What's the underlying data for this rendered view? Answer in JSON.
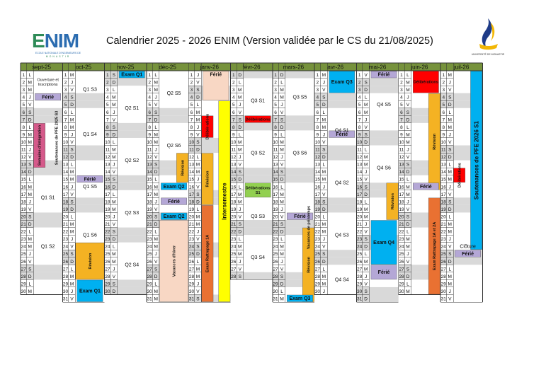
{
  "title": "Calendrier 2025 - 2026 ENIM (Version validée par le CS du 21/08/2025)",
  "logo_left": {
    "brand": "ENIM",
    "subtitle": "ECOLE NATIONALE D'INGENIEURS DE",
    "city": "MONASTIR"
  },
  "logo_right": {
    "caption": "UNIVERSITÉ DE MONASTIR"
  },
  "colors": {
    "header": "#76923c",
    "weekend": "#d9d9d9",
    "exam": "#00b0f0",
    "ferie": "#b4a7d6",
    "revision": "#f4b223",
    "deliberation": "#ff0000",
    "rattrapage": "#e97132",
    "holiday": "#f8d7c4",
    "intersemestre": "#ffff00",
    "pfe": "#00b0f0",
    "integration": "#d5598a",
    "green": "#92d050",
    "grid": "#333333"
  },
  "months": [
    {
      "name": "sept-25",
      "start_dow": 1,
      "days": 30
    },
    {
      "name": "oct-25",
      "start_dow": 3,
      "days": 31
    },
    {
      "name": "nov-25",
      "start_dow": 6,
      "days": 30
    },
    {
      "name": "déc-25",
      "start_dow": 1,
      "days": 31
    },
    {
      "name": "janv-26",
      "start_dow": 4,
      "days": 31
    },
    {
      "name": "févr-26",
      "start_dow": 0,
      "days": 28
    },
    {
      "name": "mars-26",
      "start_dow": 0,
      "days": 31
    },
    {
      "name": "avr-26",
      "start_dow": 3,
      "days": 30
    },
    {
      "name": "mai-26",
      "start_dow": 5,
      "days": 31
    },
    {
      "name": "juin-26",
      "start_dow": 1,
      "days": 30
    },
    {
      "name": "juil-26",
      "start_dow": 3,
      "days": 31
    }
  ],
  "day_letters": [
    "D",
    "L",
    "M",
    "M",
    "J",
    "V",
    "S"
  ],
  "events": [
    {
      "m": 0,
      "from": 1,
      "to": 3,
      "label": "Ouverture et Inscriptions",
      "kind": "none"
    },
    {
      "m": 0,
      "from": 4,
      "to": 4,
      "label": "Férié",
      "kind": "ferie"
    },
    {
      "m": 0,
      "from": 8,
      "to": 13,
      "label": "Semaine d'intégration",
      "kind": "integration",
      "vertical": true,
      "part": "left"
    },
    {
      "m": 0,
      "from": 6,
      "to": 13,
      "label": "Soutenances de PFE 2025 S3",
      "kind": "none",
      "vertical": true,
      "part": "right"
    },
    {
      "m": 0,
      "from": 15,
      "to": 20,
      "label": "Q1 S1",
      "kind": "none"
    },
    {
      "m": 0,
      "from": 21,
      "to": 27,
      "label": "Q1 S2",
      "kind": "none"
    },
    {
      "m": 1,
      "from": 1,
      "to": 5,
      "label": "Q1 S3",
      "kind": "none"
    },
    {
      "m": 1,
      "from": 6,
      "to": 12,
      "label": "Q1 S4",
      "kind": "none"
    },
    {
      "m": 1,
      "from": 15,
      "to": 15,
      "label": "Férié",
      "kind": "ferie"
    },
    {
      "m": 1,
      "from": 13,
      "to": 19,
      "label": "Q1 S5",
      "kind": "none"
    },
    {
      "m": 1,
      "from": 20,
      "to": 25,
      "label": "Q1 S6",
      "kind": "none"
    },
    {
      "m": 1,
      "from": 24,
      "to": 28,
      "label": "Révision",
      "kind": "revision",
      "vertical": true
    },
    {
      "m": 1,
      "from": 29,
      "to": 31,
      "label": "Exam Q1",
      "kind": "exam"
    },
    {
      "m": 2,
      "from": 1,
      "to": 1,
      "label": "Exam Q1",
      "kind": "exam"
    },
    {
      "m": 2,
      "from": 3,
      "to": 8,
      "label": "Q2 S1",
      "kind": "none"
    },
    {
      "m": 2,
      "from": 10,
      "to": 15,
      "label": "Q2 S2",
      "kind": "none"
    },
    {
      "m": 2,
      "from": 17,
      "to": 22,
      "label": "Q2 S3",
      "kind": "none"
    },
    {
      "m": 2,
      "from": 24,
      "to": 29,
      "label": "Q2 S4",
      "kind": "none"
    },
    {
      "m": 3,
      "from": 1,
      "to": 6,
      "label": "Q2 S5",
      "kind": "none"
    },
    {
      "m": 3,
      "from": 8,
      "to": 13,
      "label": "Q2 S6",
      "kind": "none"
    },
    {
      "m": 3,
      "from": 12,
      "to": 15,
      "label": "Révision",
      "kind": "revision",
      "vertical": true,
      "part": "right"
    },
    {
      "m": 3,
      "from": 16,
      "to": 16,
      "label": "Exam Q2",
      "kind": "exam"
    },
    {
      "m": 3,
      "from": 18,
      "to": 18,
      "label": "Férié",
      "kind": "ferie"
    },
    {
      "m": 3,
      "from": 20,
      "to": 20,
      "label": "Exam Q2",
      "kind": "exam"
    },
    {
      "m": 3,
      "from": 21,
      "to": 31,
      "label": "Vacances d'hiver",
      "kind": "holiday",
      "vertical": true
    },
    {
      "m": 4,
      "from": 1,
      "to": 1,
      "label": "Férié",
      "kind": "ferie"
    },
    {
      "m": 4,
      "from": 1,
      "to": 4,
      "label": "",
      "kind": "holiday"
    },
    {
      "m": 4,
      "from": 7,
      "to": 9,
      "label": "Délibér-ations",
      "kind": "deliberation",
      "vertical": true,
      "part": "left"
    },
    {
      "m": 4,
      "from": 12,
      "to": 18,
      "label": "Révision",
      "kind": "revision",
      "vertical": true,
      "part": "left"
    },
    {
      "m": 4,
      "from": 19,
      "to": 31,
      "label": "Exam Rattrapage 1A",
      "kind": "rattrapage",
      "vertical": true,
      "part": "left"
    },
    {
      "m": 4,
      "from": 5,
      "to": 31,
      "label": "Intersemestre",
      "kind": "intersemestre",
      "vertical": true,
      "part": "right"
    },
    {
      "m": 5,
      "from": 2,
      "to": 7,
      "label": "Q3 S1",
      "kind": "none"
    },
    {
      "m": 5,
      "from": 9,
      "to": 14,
      "label": "Q3 S2",
      "kind": "none"
    },
    {
      "m": 5,
      "from": 16,
      "to": 17,
      "label": "Délibérations S1",
      "kind": "green"
    },
    {
      "m": 5,
      "from": 19,
      "to": 21,
      "label": "Q3 S3",
      "kind": "none"
    },
    {
      "m": 5,
      "from": 23,
      "to": 28,
      "label": "Q3 S4",
      "kind": "none"
    },
    {
      "m": 5,
      "from": 7,
      "to": 7,
      "label": "Délibérations",
      "kind": "deliberation"
    },
    {
      "m": 6,
      "from": 2,
      "to": 6,
      "label": "Q3 S5",
      "kind": "none"
    },
    {
      "m": 6,
      "from": 9,
      "to": 14,
      "label": "Q3 S6",
      "kind": "none"
    },
    {
      "m": 6,
      "from": 14,
      "to": 29,
      "label": "Vacances de printemps",
      "kind": "none",
      "vertical": true,
      "part": "right"
    },
    {
      "m": 6,
      "from": 20,
      "to": 20,
      "label": "Férié",
      "kind": "ferie"
    },
    {
      "m": 6,
      "from": 22,
      "to": 31,
      "label": "Révision",
      "kind": "revision",
      "vertical": true,
      "part": "right"
    },
    {
      "m": 6,
      "from": 31,
      "to": 31,
      "label": "Exam Q3",
      "kind": "exam"
    },
    {
      "m": 7,
      "from": 1,
      "to": 3,
      "label": "Exam Q3",
      "kind": "exam"
    },
    {
      "m": 7,
      "from": 9,
      "to": 9,
      "label": "Férié",
      "kind": "ferie"
    },
    {
      "m": 7,
      "from": 6,
      "to": 11,
      "label": "Q4 S1",
      "kind": "none"
    },
    {
      "m": 7,
      "from": 13,
      "to": 18,
      "label": "Q4 S2",
      "kind": "none"
    },
    {
      "m": 7,
      "from": 20,
      "to": 25,
      "label": "Q4 S3",
      "kind": "none"
    },
    {
      "m": 7,
      "from": 27,
      "to": 30,
      "label": "Q4 S4",
      "kind": "none"
    },
    {
      "m": 8,
      "from": 1,
      "to": 1,
      "label": "Férié",
      "kind": "ferie"
    },
    {
      "m": 8,
      "from": 1,
      "to": 9,
      "label": "Q4 S5",
      "kind": "none"
    },
    {
      "m": 8,
      "from": 11,
      "to": 16,
      "label": "Q4 S6",
      "kind": "none"
    },
    {
      "m": 8,
      "from": 16,
      "to": 20,
      "label": "Révision",
      "kind": "revision",
      "vertical": true,
      "part": "right"
    },
    {
      "m": 8,
      "from": 21,
      "to": 26,
      "label": "Exam Q4",
      "kind": "exam"
    },
    {
      "m": 8,
      "from": 27,
      "to": 28,
      "label": "Férié",
      "kind": "ferie"
    },
    {
      "m": 9,
      "from": 1,
      "to": 3,
      "label": "Délibérations",
      "kind": "deliberation"
    },
    {
      "m": 9,
      "from": 4,
      "to": 16,
      "label": "Révision",
      "kind": "revision",
      "vertical": true,
      "part": "right"
    },
    {
      "m": 9,
      "from": 16,
      "to": 16,
      "label": "Férié",
      "kind": "ferie"
    },
    {
      "m": 9,
      "from": 18,
      "to": 30,
      "label": "Exam Rattrapage 1A et 2A",
      "kind": "rattrapage",
      "vertical": true,
      "part": "right"
    },
    {
      "m": 10,
      "from": 14,
      "to": 15,
      "label": "Délibérations",
      "kind": "deliberation",
      "vertical": true,
      "part": "left"
    },
    {
      "m": 10,
      "from": 1,
      "to": 24,
      "label": "Soutenances de PFE 2026 S1",
      "kind": "pfe",
      "vertical": true,
      "part": "right"
    },
    {
      "m": 10,
      "from": 24,
      "to": 24,
      "label": "Clôture",
      "kind": "none"
    },
    {
      "m": 10,
      "from": 25,
      "to": 25,
      "label": "Férié",
      "kind": "ferie"
    }
  ]
}
